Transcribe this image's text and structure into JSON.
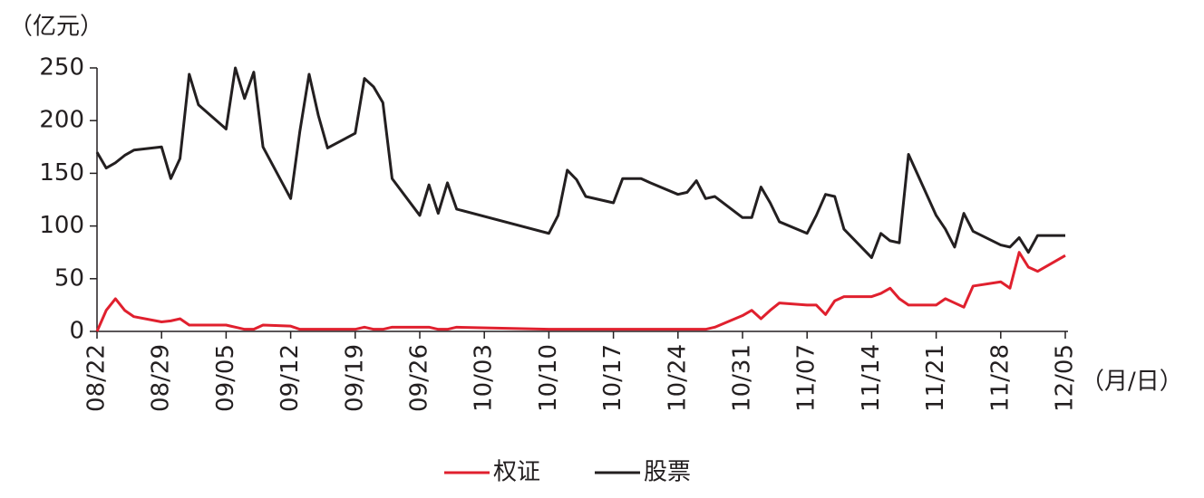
{
  "chart_data": {
    "type": "line",
    "y_label": "（亿元）",
    "x_label": "（月/日）",
    "xlim": [
      "08/22",
      "12/05"
    ],
    "xticks": [
      "08/22",
      "08/29",
      "09/05",
      "09/12",
      "09/19",
      "09/26",
      "10/03",
      "10/10",
      "10/17",
      "10/24",
      "10/31",
      "11/07",
      "11/14",
      "11/21",
      "11/28",
      "12/05"
    ],
    "ylim": [
      0,
      250
    ],
    "yticks": [
      0,
      50,
      100,
      150,
      200,
      250
    ],
    "legend": "bottom",
    "series": [
      {
        "name": "权证",
        "color": "#e0202e",
        "x": [
          "08/22",
          "08/23",
          "08/24",
          "08/25",
          "08/26",
          "08/29",
          "08/30",
          "08/31",
          "09/01",
          "09/02",
          "09/05",
          "09/06",
          "09/07",
          "09/08",
          "09/09",
          "09/12",
          "09/13",
          "09/14",
          "09/15",
          "09/16",
          "09/19",
          "09/20",
          "09/21",
          "09/22",
          "09/23",
          "09/26",
          "09/27",
          "09/28",
          "09/29",
          "09/30",
          "10/10",
          "10/27",
          "10/28",
          "10/31",
          "11/01",
          "11/02",
          "11/03",
          "11/04",
          "11/07",
          "11/08",
          "11/09",
          "11/10",
          "11/11",
          "11/14",
          "11/15",
          "11/16",
          "11/17",
          "11/18",
          "11/21",
          "11/22",
          "11/23",
          "11/24",
          "11/25",
          "11/28",
          "11/29",
          "11/30",
          "12/01",
          "12/02",
          "12/05"
        ],
        "values": [
          0,
          20,
          31,
          20,
          14,
          9,
          10,
          12,
          6,
          6,
          6,
          4,
          2,
          2,
          6,
          5,
          2,
          2,
          2,
          2,
          2,
          4,
          2,
          2,
          4,
          4,
          4,
          2,
          2,
          4,
          2,
          2,
          4,
          15,
          20,
          12,
          20,
          27,
          25,
          25,
          16,
          29,
          33,
          33,
          36,
          41,
          31,
          25,
          25,
          31,
          27,
          23,
          43,
          47,
          41,
          75,
          61,
          57,
          72
        ]
      },
      {
        "name": "股票",
        "color": "#231f20",
        "x": [
          "08/22",
          "08/23",
          "08/24",
          "08/25",
          "08/26",
          "08/29",
          "08/30",
          "08/31",
          "09/01",
          "09/02",
          "09/05",
          "09/06",
          "09/07",
          "09/08",
          "09/09",
          "09/12",
          "09/13",
          "09/14",
          "09/15",
          "09/16",
          "09/19",
          "09/20",
          "09/21",
          "09/22",
          "09/23",
          "09/26",
          "09/27",
          "09/28",
          "09/29",
          "09/30",
          "10/10",
          "10/11",
          "10/12",
          "10/13",
          "10/14",
          "10/17",
          "10/18",
          "10/19",
          "10/20",
          "10/21",
          "10/24",
          "10/25",
          "10/26",
          "10/27",
          "10/28",
          "10/31",
          "11/01",
          "11/02",
          "11/03",
          "11/04",
          "11/07",
          "11/08",
          "11/09",
          "11/10",
          "11/11",
          "11/14",
          "11/15",
          "11/16",
          "11/17",
          "11/18",
          "11/21",
          "11/22",
          "11/23",
          "11/24",
          "11/25",
          "11/28",
          "11/29",
          "11/30",
          "12/01",
          "12/02",
          "12/05"
        ],
        "values": [
          170,
          155,
          160,
          167,
          172,
          175,
          145,
          164,
          244,
          215,
          192,
          250,
          221,
          246,
          175,
          126,
          190,
          244,
          205,
          174,
          188,
          240,
          232,
          217,
          145,
          110,
          139,
          112,
          141,
          116,
          93,
          110,
          153,
          144,
          128,
          122,
          145,
          145,
          145,
          141,
          130,
          132,
          143,
          126,
          128,
          108,
          108,
          137,
          122,
          104,
          93,
          110,
          130,
          128,
          97,
          70,
          93,
          86,
          84,
          168,
          110,
          97,
          80,
          112,
          95,
          82,
          80,
          89,
          75,
          91,
          91
        ]
      }
    ]
  }
}
